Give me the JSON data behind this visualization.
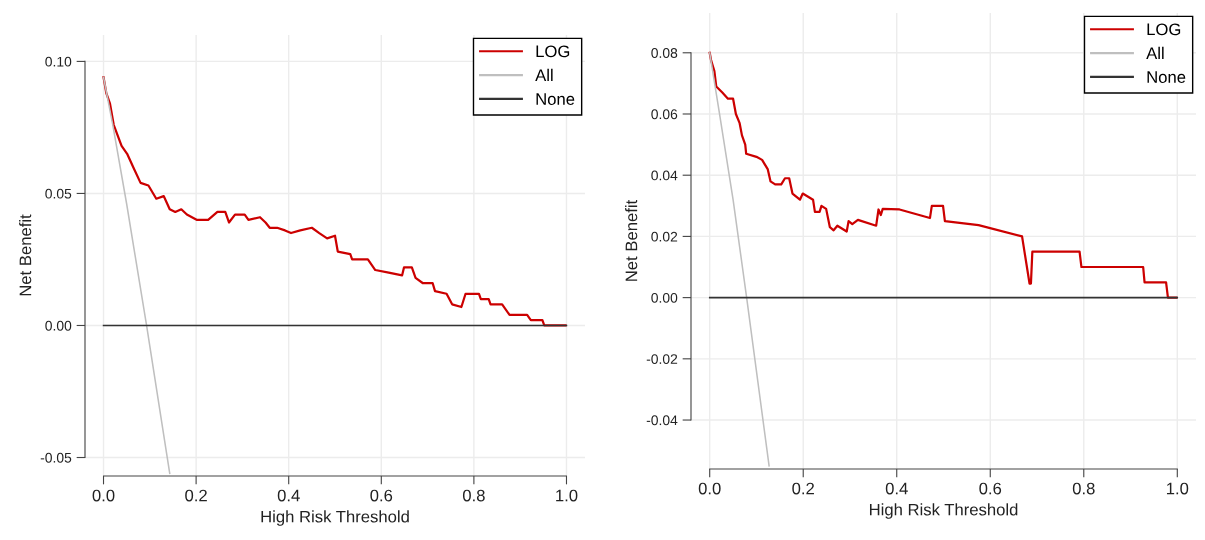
{
  "chart_data": [
    {
      "type": "line",
      "xlabel": "High Risk Threshold",
      "ylabel": "Net Benefit",
      "xlim": [
        -0.04,
        1.04
      ],
      "ylim": [
        -0.057,
        0.11
      ],
      "xticks": [
        {
          "value": 0,
          "label": "0.0"
        },
        {
          "value": 0.2,
          "label": "0.2"
        },
        {
          "value": 0.4,
          "label": "0.4"
        },
        {
          "value": 0.6,
          "label": "0.6"
        },
        {
          "value": 0.8,
          "label": "0.8"
        },
        {
          "value": 1,
          "label": "1.0"
        }
      ],
      "yticks": [
        {
          "value": -0.05,
          "label": "-0.05"
        },
        {
          "value": 0,
          "label": "0.00"
        },
        {
          "value": 0.05,
          "label": "0.05"
        },
        {
          "value": 0.1,
          "label": "0.10"
        }
      ],
      "grid": true,
      "legend": "top right",
      "line_style": "solid",
      "marker": "none",
      "series": [
        {
          "name": "LOG",
          "color": "#cc0000",
          "x": [
            0,
            0.006,
            0.014,
            0.022,
            0.039,
            0.051,
            0.064,
            0.08,
            0.097,
            0.114,
            0.13,
            0.143,
            0.155,
            0.168,
            0.18,
            0.201,
            0.226,
            0.246,
            0.263,
            0.271,
            0.284,
            0.305,
            0.313,
            0.338,
            0.35,
            0.359,
            0.375,
            0.392,
            0.405,
            0.425,
            0.45,
            0.466,
            0.483,
            0.5,
            0.506,
            0.533,
            0.537,
            0.571,
            0.587,
            0.616,
            0.645,
            0.649,
            0.666,
            0.674,
            0.69,
            0.711,
            0.716,
            0.741,
            0.753,
            0.773,
            0.782,
            0.811,
            0.815,
            0.832,
            0.836,
            0.861,
            0.877,
            0.915,
            0.923,
            0.948,
            0.952,
            0.998
          ],
          "values": [
            0.094,
            0.088,
            0.084,
            0.076,
            0.068,
            0.065,
            0.06,
            0.054,
            0.053,
            0.048,
            0.049,
            0.044,
            0.043,
            0.044,
            0.042,
            0.04,
            0.04,
            0.043,
            0.043,
            0.039,
            0.042,
            0.042,
            0.04,
            0.041,
            0.039,
            0.037,
            0.037,
            0.036,
            0.035,
            0.036,
            0.037,
            0.035,
            0.033,
            0.034,
            0.028,
            0.027,
            0.025,
            0.025,
            0.021,
            0.02,
            0.019,
            0.022,
            0.022,
            0.018,
            0.016,
            0.016,
            0.013,
            0.012,
            0.008,
            0.007,
            0.012,
            0.012,
            0.01,
            0.01,
            0.008,
            0.008,
            0.004,
            0.004,
            0.002,
            0.002,
            0,
            0
          ]
        },
        {
          "name": "All",
          "color": "#bfbfbf",
          "x": [
            0,
            0.02,
            0.05,
            0.093,
            0.143
          ],
          "values": [
            0.094,
            0.076,
            0.046,
            0,
            -0.056
          ]
        },
        {
          "name": "None",
          "color": "#333333",
          "x": [
            0,
            1
          ],
          "values": [
            0,
            0
          ]
        }
      ]
    },
    {
      "type": "line",
      "xlabel": "High Risk Threshold",
      "ylabel": "Net Benefit",
      "xlim": [
        -0.04,
        1.04
      ],
      "ylim": [
        -0.056,
        0.093
      ],
      "xticks": [
        {
          "value": 0,
          "label": "0.0"
        },
        {
          "value": 0.2,
          "label": "0.2"
        },
        {
          "value": 0.4,
          "label": "0.4"
        },
        {
          "value": 0.6,
          "label": "0.6"
        },
        {
          "value": 0.8,
          "label": "0.8"
        },
        {
          "value": 1,
          "label": "1.0"
        }
      ],
      "yticks": [
        {
          "value": -0.04,
          "label": "-0.04"
        },
        {
          "value": -0.02,
          "label": "-0.02"
        },
        {
          "value": 0,
          "label": "0.00"
        },
        {
          "value": 0.02,
          "label": "0.02"
        },
        {
          "value": 0.04,
          "label": "0.04"
        },
        {
          "value": 0.06,
          "label": "0.06"
        },
        {
          "value": 0.08,
          "label": "0.08"
        }
      ],
      "grid": true,
      "legend": "top right",
      "line_style": "solid",
      "marker": "none",
      "series": [
        {
          "name": "LOG",
          "color": "#cc0000",
          "x": [
            0,
            0.003,
            0.01,
            0.014,
            0.027,
            0.039,
            0.05,
            0.056,
            0.064,
            0.069,
            0.076,
            0.078,
            0.1,
            0.112,
            0.124,
            0.13,
            0.14,
            0.153,
            0.161,
            0.17,
            0.177,
            0.193,
            0.199,
            0.221,
            0.225,
            0.235,
            0.239,
            0.249,
            0.257,
            0.265,
            0.273,
            0.293,
            0.297,
            0.305,
            0.317,
            0.356,
            0.361,
            0.366,
            0.37,
            0.406,
            0.471,
            0.475,
            0.499,
            0.503,
            0.575,
            0.668,
            0.684,
            0.687,
            0.69,
            0.791,
            0.795,
            0.927,
            0.93,
            0.976,
            0.98,
            0.998
          ],
          "values": [
            0.08,
            0.0775,
            0.074,
            0.069,
            0.067,
            0.065,
            0.065,
            0.06,
            0.057,
            0.053,
            0.05,
            0.047,
            0.046,
            0.045,
            0.042,
            0.038,
            0.037,
            0.037,
            0.039,
            0.039,
            0.034,
            0.032,
            0.034,
            0.032,
            0.028,
            0.028,
            0.03,
            0.029,
            0.023,
            0.022,
            0.0235,
            0.0216,
            0.025,
            0.024,
            0.0254,
            0.0235,
            0.0288,
            0.027,
            0.029,
            0.0288,
            0.026,
            0.03,
            0.03,
            0.025,
            0.0237,
            0.02,
            0.0046,
            0.0046,
            0.015,
            0.015,
            0.01,
            0.01,
            0.005,
            0.005,
            0,
            0
          ]
        },
        {
          "name": "All",
          "color": "#bfbfbf",
          "x": [
            0,
            0.02,
            0.05,
            0.079,
            0.127
          ],
          "values": [
            0.08,
            0.061,
            0.032,
            0,
            -0.055
          ]
        },
        {
          "name": "None",
          "color": "#333333",
          "x": [
            0,
            1
          ],
          "values": [
            0,
            0
          ]
        }
      ]
    }
  ]
}
